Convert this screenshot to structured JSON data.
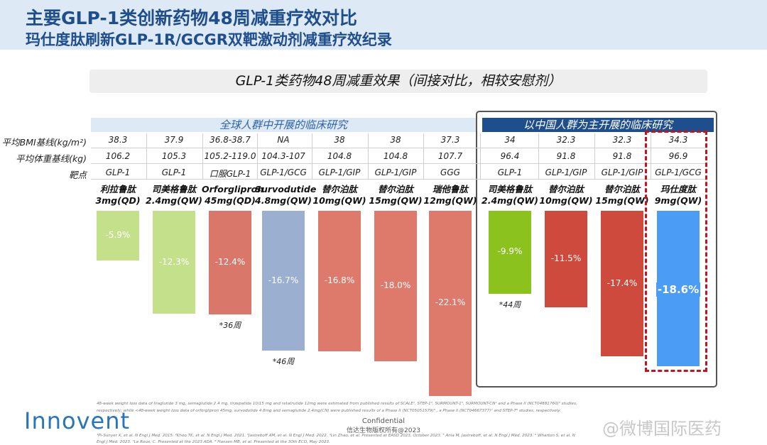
{
  "header": {
    "title": "主要GLP-1类创新药物48周减重疗效对比",
    "subtitle": "玛仕度肽刷新GLP-1R/GCGR双靶激动剂减重疗效纪录"
  },
  "banner": "GLP-1类药物48周减重效果（间接对比，相较安慰剂）",
  "regions": {
    "global": "全球人群中开展的临床研究",
    "china": "以中国人群为主开展的临床研究"
  },
  "row_labels": {
    "bmi": "平均BMI基线(kg/m²)",
    "weight": "平均体重基线(kg)",
    "target": "靶点"
  },
  "drugs": [
    {
      "name": "利拉鲁肽",
      "dose": "3mg(QD)",
      "bmi": "38.3",
      "weight": "106.2",
      "target": "GLP-1",
      "result": "-5.9%",
      "color": "#c5e08a",
      "note": ""
    },
    {
      "name": "司美格鲁肽",
      "dose": "2.4mg(QW)",
      "bmi": "37.9",
      "weight": "105.3",
      "target": "GLP-1",
      "result": "-12.3%",
      "color": "#c5e08a",
      "note": ""
    },
    {
      "name": "Orforglipron",
      "dose": "45mg(QD)",
      "bmi": "36.8-38.7",
      "weight": "105.2-119.0",
      "target": "口服GLP-1",
      "result": "-12.4%",
      "color": "#d9786a",
      "note": "*36周"
    },
    {
      "name": "Survodutide",
      "dose": "4.8mg(QW)",
      "bmi": "NA",
      "weight": "104.3-107",
      "target": "GLP-1/GCG",
      "result": "-16.7%",
      "color": "#9bafd1",
      "note": "*46周"
    },
    {
      "name": "替尔泊肽",
      "dose": "10mg(QW)",
      "bmi": "38",
      "weight": "104.8",
      "target": "GLP-1/GIP",
      "result": "-16.8%",
      "color": "#de7a6b",
      "note": ""
    },
    {
      "name": "替尔泊肽",
      "dose": "15mg(QW)",
      "bmi": "38",
      "weight": "104.8",
      "target": "GLP-1/GIP",
      "result": "-18.0%",
      "color": "#de7a6b",
      "note": ""
    },
    {
      "name": "瑞他鲁肽",
      "dose": "12mg(QW)",
      "bmi": "37.3",
      "weight": "107.7",
      "target": "GGG",
      "result": "-22.1%",
      "color": "#de7a6b",
      "note": ""
    },
    {
      "name": "司美格鲁肽",
      "dose": "2.4mg(QW)",
      "bmi": "34",
      "weight": "96.4",
      "target": "GLP-1",
      "result": "-9.9%",
      "color": "#8cc21e",
      "note": "*44周"
    },
    {
      "name": "替尔泊肽",
      "dose": "10mg(QW)",
      "bmi": "32.3",
      "weight": "91.8",
      "target": "GLP-1/GIP",
      "result": "-11.5%",
      "color": "#cd4a3c",
      "note": ""
    },
    {
      "name": "替尔泊肽",
      "dose": "15mg(QW)",
      "bmi": "32.3",
      "weight": "91.8",
      "target": "GLP-1/GIP",
      "result": "-17.4%",
      "color": "#cd4a3c",
      "note": ""
    },
    {
      "name": "玛仕度肽",
      "dose": "9mg(QW)",
      "bmi": "34.3",
      "weight": "96.9",
      "target": "GLP-1/GCG",
      "result": "-18.6%",
      "color": "#4a9cf5",
      "note": ""
    }
  ],
  "chart_data": {
    "type": "bar",
    "title": "GLP-1类药物48周减重效果（间接对比，相较安慰剂）",
    "categories": [
      "利拉鲁肽 3mg(QD)",
      "司美格鲁肽 2.4mg(QW)",
      "Orforglipron 45mg(QD)",
      "Survodutide 4.8mg(QW)",
      "替尔泊肽 10mg(QW)",
      "替尔泊肽 15mg(QW)",
      "瑞他鲁肽 12mg(QW)",
      "司美格鲁肽 2.4mg(QW)",
      "替尔泊肽 10mg(QW)",
      "替尔泊肽 15mg(QW)",
      "玛仕度肽 9mg(QW)"
    ],
    "values": [
      -5.9,
      -12.3,
      -12.4,
      -16.7,
      -16.8,
      -18.0,
      -22.1,
      -9.9,
      -11.5,
      -17.4,
      -18.6
    ],
    "ylim": [
      -22.1,
      0
    ],
    "grid": false,
    "legend": "none"
  },
  "footnotes": [
    "48-week weight loss data of liraglutide 3 mg, semaglutide 2.4 mg, tirzepatide 10/15 mg and retatrutide 12mg were estimated from published results of SCALE¹, STEP-1², SURMOUNT-1³, SURMOUNT-CN⁴ and a Phase II (NCT04881760)⁵ studies,",
    "respectively; while <48-week weight loss data of orforglipron 45mg, survodutide 4.8mg and semaglutide 2.4mg(CN) were published results of a Phase II (NCT05051579)⁶ , a Phase II (NCT04667377)⁷ and STEP-7⁸ studies, respectively.",
    "¹Pi-Sunyer X, et al. N Engl J Med. 2015. ²Khoo TK, et al. N Engl J Med. 2021. ³Jastreboff AM, et al. N Engl J Med. 2022. ⁴Lin Zhao, et al. Presented at EASD 2023, October 2023. ⁵ Ania M, Jastreboff, et al. N Engl J Med. 2023. ⁶ Wharton S, et al. N",
    "Engl J Med. 2023. ⁷Le Roux, C. Presented at the 2023 ADA. ⁸ Hansen MB, et al. Presented at the 30th ECO, May 2023."
  ],
  "confidential": "Confidential",
  "copyright": "信达生物版权所有@2023",
  "logo": "Innovent",
  "watermark": "@微博国际医药"
}
